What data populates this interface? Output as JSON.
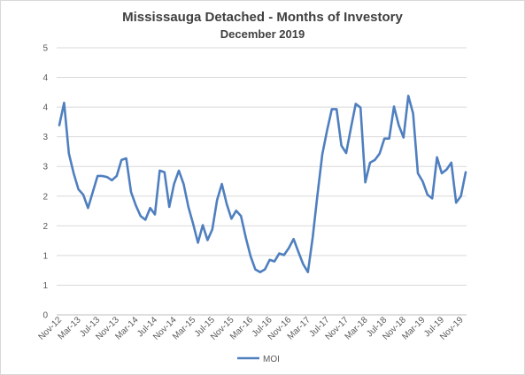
{
  "chart_data": {
    "type": "line",
    "title": "Mississauga Detached - Months of Investory",
    "subtitle": "December 2019",
    "xlabel": "",
    "ylabel": "",
    "ylim": [
      0,
      5
    ],
    "y_tick_labels": [
      "0",
      "1",
      "1",
      "2",
      "2",
      "3",
      "3",
      "4",
      "4",
      "5"
    ],
    "x_tick_labels": [
      "Nov-12",
      "Mar-13",
      "Jul-13",
      "Nov-13",
      "Mar-14",
      "Jul-14",
      "Nov-14",
      "Mar-15",
      "Jul-15",
      "Nov-15",
      "Mar-16",
      "Jul-16",
      "Nov-16",
      "Mar-17",
      "Jul-17",
      "Nov-17",
      "Mar-18",
      "Jul-18",
      "Nov-18",
      "Mar-19",
      "Jul-19",
      "Nov-19"
    ],
    "grid": true,
    "legend_position": "bottom",
    "color": "#4f7fbf",
    "series": [
      {
        "name": "MOI",
        "values": [
          3.55,
          3.97,
          3.02,
          2.65,
          2.35,
          2.25,
          2.0,
          2.3,
          2.6,
          2.6,
          2.58,
          2.52,
          2.6,
          2.9,
          2.93,
          2.3,
          2.05,
          1.85,
          1.78,
          2.0,
          1.88,
          2.7,
          2.67,
          2.02,
          2.45,
          2.7,
          2.45,
          2.02,
          1.7,
          1.35,
          1.68,
          1.4,
          1.6,
          2.15,
          2.45,
          2.08,
          1.8,
          1.95,
          1.85,
          1.45,
          1.1,
          0.85,
          0.8,
          0.85,
          1.03,
          1.0,
          1.15,
          1.12,
          1.25,
          1.42,
          1.18,
          0.95,
          0.8,
          1.45,
          2.25,
          3.0,
          3.45,
          3.85,
          3.85,
          3.17,
          3.03,
          3.5,
          3.95,
          3.88,
          2.48,
          2.85,
          2.9,
          3.02,
          3.3,
          3.3,
          3.9,
          3.55,
          3.32,
          4.1,
          3.77,
          2.65,
          2.5,
          2.25,
          2.18,
          2.95,
          2.65,
          2.72,
          2.85,
          2.1,
          2.22,
          2.67
        ]
      }
    ]
  }
}
